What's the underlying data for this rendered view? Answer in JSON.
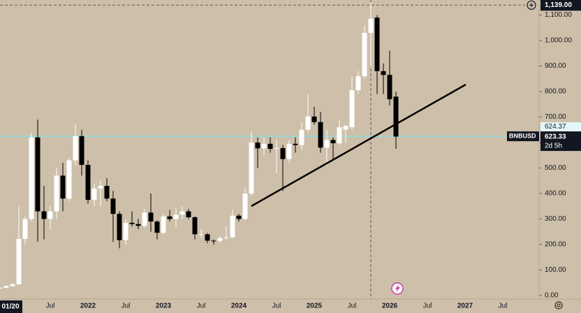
{
  "chart_data": {
    "type": "candlestick",
    "symbol": "BNBUSD",
    "categories": [
      null,
      null,
      "01/20",
      null,
      null,
      null,
      null,
      null,
      "Jul",
      null,
      null,
      null,
      null,
      null,
      "2022",
      null,
      null,
      null,
      null,
      null,
      "Jul",
      null,
      null,
      null,
      null,
      null,
      "2023",
      null,
      null,
      null,
      null,
      null,
      "Jul",
      null,
      null,
      null,
      null,
      null,
      "2024",
      null,
      null,
      null,
      null,
      null,
      "Jul",
      null,
      null,
      null,
      null,
      null,
      "2025",
      null,
      null,
      null,
      null,
      null,
      "Jul",
      null,
      null,
      null,
      null,
      null,
      "2026",
      null,
      null,
      null,
      null,
      null,
      "Jul",
      null,
      null,
      null,
      null,
      null,
      "2027",
      null,
      null,
      null,
      null,
      null,
      "Jul",
      null,
      null,
      null
    ],
    "open": [
      28,
      30,
      37,
      44,
      222,
      300,
      620,
      330,
      300,
      330,
      470,
      380,
      530,
      625,
      512,
      375,
      420,
      430,
      380,
      320,
      217,
      285,
      280,
      273,
      325,
      290,
      246,
      310,
      300,
      317,
      330,
      307,
      240,
      240,
      215,
      214,
      225,
      228,
      313,
      300,
      400,
      600,
      577,
      595,
      575,
      578,
      535,
      595,
      590,
      650,
      702,
      680,
      580,
      610,
      597,
      650,
      660,
      805,
      860,
      1030,
      1090,
      880,
      865,
      780,
      null,
      null,
      null,
      null,
      null,
      null,
      null,
      null,
      null,
      null,
      null,
      null,
      null,
      null,
      null,
      null,
      null,
      null,
      null,
      null
    ],
    "high": [
      33,
      40,
      48,
      348,
      310,
      638,
      690,
      430,
      350,
      500,
      520,
      540,
      670,
      650,
      530,
      440,
      450,
      460,
      410,
      330,
      300,
      330,
      300,
      340,
      400,
      295,
      320,
      335,
      345,
      350,
      340,
      310,
      260,
      245,
      220,
      235,
      270,
      335,
      320,
      420,
      645,
      620,
      620,
      620,
      610,
      590,
      610,
      620,
      680,
      790,
      740,
      720,
      650,
      620,
      690,
      670,
      860,
      880,
      1060,
      1150,
      1100,
      910,
      960,
      800,
      null,
      null,
      null,
      null,
      null,
      null,
      null,
      null,
      null,
      null,
      null,
      null,
      null,
      null,
      null,
      null,
      null,
      null,
      null,
      null
    ],
    "low": [
      26,
      28,
      35,
      40,
      200,
      290,
      211,
      220,
      260,
      300,
      330,
      370,
      510,
      470,
      360,
      350,
      350,
      370,
      210,
      185,
      200,
      270,
      260,
      265,
      250,
      220,
      240,
      290,
      270,
      300,
      300,
      220,
      225,
      205,
      200,
      205,
      220,
      225,
      290,
      295,
      390,
      500,
      550,
      560,
      480,
      410,
      520,
      560,
      570,
      640,
      670,
      560,
      510,
      530,
      590,
      600,
      650,
      790,
      850,
      900,
      790,
      790,
      745,
      575,
      null,
      null,
      null,
      null,
      null,
      null,
      null,
      null,
      null,
      null,
      null,
      null,
      null,
      null,
      null,
      null,
      null,
      null,
      null,
      null
    ],
    "close": [
      30,
      37,
      44,
      222,
      300,
      620,
      330,
      300,
      330,
      470,
      380,
      530,
      625,
      512,
      375,
      420,
      430,
      380,
      320,
      217,
      285,
      280,
      273,
      325,
      290,
      246,
      310,
      300,
      317,
      330,
      307,
      240,
      240,
      215,
      214,
      225,
      228,
      313,
      300,
      400,
      600,
      577,
      595,
      575,
      578,
      535,
      595,
      590,
      650,
      702,
      680,
      580,
      610,
      597,
      660,
      665,
      805,
      860,
      1030,
      1085,
      880,
      865,
      770,
      623.33,
      null,
      null,
      null,
      null,
      null,
      null,
      null,
      null,
      null,
      null,
      null,
      null,
      null,
      null,
      null,
      null,
      null,
      null,
      null,
      null
    ],
    "ylim": [
      -14,
      1159
    ],
    "yticks": [
      {
        "value": 0,
        "label": "0.00"
      },
      {
        "value": 100,
        "label": "100.00"
      },
      {
        "value": 200,
        "label": "200.00"
      },
      {
        "value": 300,
        "label": "300.00"
      },
      {
        "value": 400,
        "label": "400.00"
      },
      {
        "value": 500,
        "label": "500.00"
      },
      {
        "value": 600,
        "label": "600.00"
      },
      {
        "value": 700,
        "label": "700.00"
      },
      {
        "value": 800,
        "label": "800.00"
      },
      {
        "value": 900,
        "label": "900.00"
      },
      {
        "value": 1000,
        "label": "1,000.00"
      },
      {
        "value": 1100,
        "label": "1,100.00"
      }
    ],
    "crosshair_price": {
      "value": 1139,
      "label": "1,139.00"
    },
    "alert_price": {
      "value": 624.37,
      "label": "624.37"
    },
    "last_price_label": "623.33",
    "countdown": "2d 5h",
    "up_color": "#ffffff",
    "down_color": "#000000",
    "price_line_color": "#8fdde3"
  }
}
